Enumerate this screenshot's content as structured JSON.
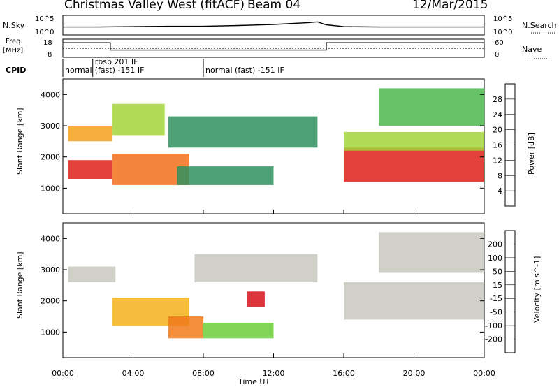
{
  "header": {
    "station_title": "Christmas Valley West (fitACF)",
    "beam_label": "Beam 04",
    "date_label": "12/Mar/2015"
  },
  "top_panels": {
    "nsky_label": "N.Sky",
    "nsky_ticks": [
      "10^5",
      "10^0"
    ],
    "nsearch_label": "N.Search",
    "nsearch_ticks": [
      "10^5",
      "10^0"
    ],
    "freq_label": "Freq.",
    "freq_unit": "[MHz]",
    "freq_ticks": [
      "18",
      "8"
    ],
    "nave_label": "Nave",
    "nave_ticks": [
      "60",
      "0"
    ],
    "cpid_label": "CPID",
    "cpid_segments": [
      {
        "start": 0.0,
        "end": 1.7,
        "label": "normal",
        "label2": ""
      },
      {
        "start": 1.7,
        "end": 8.0,
        "label": "rbsp 201 IF",
        "label2": "(fast) -151 IF"
      },
      {
        "start": 8.0,
        "end": 24.0,
        "label": "normal (fast) -151 IF",
        "label2": ""
      }
    ]
  },
  "time_axis": {
    "title": "Time UT",
    "ticks": [
      "00:00",
      "04:00",
      "08:00",
      "12:00",
      "16:00",
      "20:00",
      "00:00"
    ]
  },
  "power_panel": {
    "ylabel": "Slant Range [km]",
    "yticks": [
      "1000",
      "2000",
      "3000",
      "4000"
    ],
    "colorbar_label": "Power [dB]",
    "colorbar_ticks": [
      "4",
      "8",
      "12",
      "16",
      "20",
      "24",
      "28"
    ],
    "colors": [
      "#1f2fe0",
      "#1a5fb4",
      "#2f8f5f",
      "#4cb84c",
      "#a4d63a",
      "#f2d21b",
      "#f5a11a",
      "#f2701a",
      "#e0201a"
    ]
  },
  "velocity_panel": {
    "ylabel": "Slant Range [km]",
    "yticks": [
      "1000",
      "2000",
      "3000",
      "4000"
    ],
    "colorbar_label": "Velocity [m s^-1]",
    "colorbar_ticks": [
      "200",
      "100",
      "50",
      "15",
      "-15",
      "-50",
      "-100",
      "-200"
    ],
    "colors": [
      "#1f2fe0",
      "#1a6fc4",
      "#2f9f4f",
      "#6ccf3a",
      "#c8c8c0",
      "#f5b31a",
      "#f07a1a",
      "#e8401a",
      "#d8101a"
    ]
  },
  "chart_data": [
    {
      "type": "line",
      "title": "N.Sky / N.Search",
      "x": [
        0,
        2,
        4,
        6,
        8,
        10,
        12,
        14,
        14.5,
        15,
        16,
        18,
        20,
        22,
        24
      ],
      "series": [
        {
          "values": [
            2.0,
            2.0,
            2.1,
            2.2,
            2.2,
            2.4,
            2.7,
            3.2,
            3.4,
            2.6,
            2.1,
            2.0,
            2.0,
            2.0,
            2.0
          ]
        }
      ],
      "ylim": [
        0,
        5
      ]
    },
    {
      "type": "line",
      "title": "Freq. [MHz] / Nave",
      "x": [
        0,
        2.7,
        2.7,
        7.5,
        7.5,
        15.0,
        15.0,
        24
      ],
      "series": [
        {
          "values": [
            16,
            16,
            12,
            12,
            12,
            12,
            16,
            16
          ]
        }
      ],
      "ylim": [
        8,
        18
      ]
    },
    {
      "type": "heatmap",
      "title": "Power [dB]",
      "xlim": [
        0,
        24
      ],
      "ylim": [
        180,
        4500
      ],
      "bands": [
        {
          "start": 0.3,
          "end": 2.8,
          "range0": 1300,
          "range1": 1900,
          "value": 28
        },
        {
          "start": 2.8,
          "end": 7.2,
          "range0": 1100,
          "range1": 2100,
          "value": 26
        },
        {
          "start": 0.3,
          "end": 2.8,
          "range0": 2500,
          "range1": 3000,
          "value": 22
        },
        {
          "start": 2.8,
          "end": 5.8,
          "range0": 2700,
          "range1": 3700,
          "value": 16
        },
        {
          "start": 6.0,
          "end": 14.5,
          "range0": 2300,
          "range1": 3300,
          "value": 8
        },
        {
          "start": 6.5,
          "end": 12.0,
          "range0": 1100,
          "range1": 1700,
          "value": 8
        },
        {
          "start": 16.0,
          "end": 24.0,
          "range0": 1200,
          "range1": 2300,
          "value": 28
        },
        {
          "start": 16.0,
          "end": 24.0,
          "range0": 2200,
          "range1": 2800,
          "value": 14
        },
        {
          "start": 18.0,
          "end": 24.0,
          "range0": 3000,
          "range1": 4200,
          "value": 12
        }
      ]
    },
    {
      "type": "heatmap",
      "title": "Velocity [m s^-1]",
      "xlim": [
        0,
        24
      ],
      "ylim": [
        180,
        4500
      ],
      "bands": [
        {
          "start": 0.3,
          "end": 3.0,
          "range0": 2600,
          "range1": 3100,
          "value": 0
        },
        {
          "start": 2.8,
          "end": 7.2,
          "range0": 1200,
          "range1": 2100,
          "value": -40
        },
        {
          "start": 6.0,
          "end": 8.0,
          "range0": 800,
          "range1": 1500,
          "value": -100
        },
        {
          "start": 8.0,
          "end": 12.0,
          "range0": 800,
          "range1": 1300,
          "value": 30
        },
        {
          "start": 10.5,
          "end": 11.5,
          "range0": 1800,
          "range1": 2300,
          "value": -200
        },
        {
          "start": 7.5,
          "end": 14.5,
          "range0": 2600,
          "range1": 3500,
          "value": 0
        },
        {
          "start": 16.0,
          "end": 24.0,
          "range0": 1400,
          "range1": 2600,
          "value": 0
        },
        {
          "start": 18.0,
          "end": 24.0,
          "range0": 2900,
          "range1": 4200,
          "value": 0
        }
      ]
    }
  ]
}
